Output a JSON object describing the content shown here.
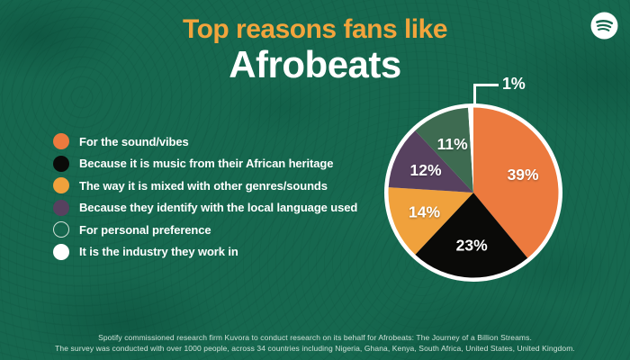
{
  "header": {
    "title_line1": "Top reasons fans like",
    "title_line2": "Afrobeats"
  },
  "brand": {
    "name": "Spotify",
    "icon": "spotify-icon"
  },
  "colors": {
    "background": "#16684F",
    "title_accent": "#F2A43C",
    "text": "#FFFFFF",
    "footer_text": "#CFE2D8",
    "pie_ring": "#FFFFFF"
  },
  "legend": {
    "items": [
      {
        "label": "For the sound/vibes",
        "swatch": "#EC7A3E",
        "style": "filled"
      },
      {
        "label": "Because it is music from their African heritage",
        "swatch": "#0A0A08",
        "style": "filled"
      },
      {
        "label": "The way it is mixed with other genres/sounds",
        "swatch": "#F0A13C",
        "style": "filled"
      },
      {
        "label": "Because they identify with the local language used",
        "swatch": "#57415F",
        "style": "filled"
      },
      {
        "label": "For personal preference",
        "swatch": "transparent",
        "style": "outline"
      },
      {
        "label": "It is the industry they work in",
        "swatch": "#FFFFFF",
        "style": "filled"
      }
    ]
  },
  "chart_data": {
    "type": "pie",
    "title": "Top reasons fans like Afrobeats",
    "categories": [
      "For the sound/vibes",
      "Because it is music from their African heritage",
      "The way it is mixed with other genres/sounds",
      "Because they identify with the local language used",
      "For personal preference",
      "It is the industry they work in"
    ],
    "values": [
      39,
      23,
      14,
      12,
      11,
      1
    ],
    "labels": [
      "39%",
      "23%",
      "14%",
      "12%",
      "11%",
      "1%"
    ],
    "colors": [
      "#EC7A3E",
      "#0A0A08",
      "#F0A13C",
      "#57415F",
      "#3E6B51",
      "#FFFFFF"
    ],
    "start_angle_deg": 0,
    "direction": "clockwise",
    "legend_position": "left",
    "callout": {
      "index": 5,
      "label": "1%"
    }
  },
  "footer": {
    "line1": "Spotify commissioned research firm Kuvora to conduct research on its behalf for Afrobeats: The Journey of a Billion Streams.",
    "line2": "The survey was conducted with over 1000 people, across 34 countries including Nigeria, Ghana, Kenya, South Africa, United States, United Kingdom."
  }
}
